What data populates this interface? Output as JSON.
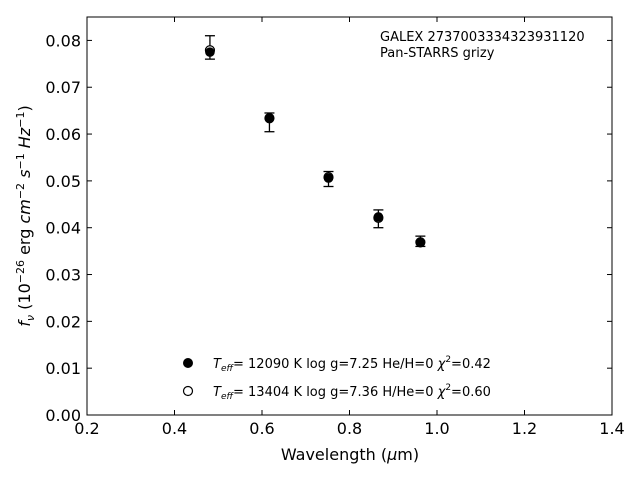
{
  "chart_data": {
    "type": "scatter",
    "title": "",
    "xlabel": "Wavelength (μm)",
    "ylabel": "f_ν (10^-26 erg cm^-2 s^-1 Hz^-1)",
    "xlim": [
      0.2,
      1.4
    ],
    "ylim": [
      0.0,
      0.085
    ],
    "x_ticks": [
      0.2,
      0.4,
      0.6,
      0.8,
      1.0,
      1.2,
      1.4
    ],
    "x_tick_labels": [
      "0.2",
      "0.4",
      "0.6",
      "0.8",
      "1.0",
      "1.2",
      "1.4"
    ],
    "y_ticks": [
      0.0,
      0.01,
      0.02,
      0.03,
      0.04,
      0.05,
      0.06,
      0.07,
      0.08
    ],
    "y_tick_labels": [
      "0.00",
      "0.01",
      "0.02",
      "0.03",
      "0.04",
      "0.05",
      "0.06",
      "0.07",
      "0.08"
    ],
    "grid": false,
    "annotation": [
      "GALEX 2737003334323931120",
      "Pan-STARRS grizy"
    ],
    "observed": {
      "x": [
        0.481,
        0.617,
        0.752,
        0.866,
        0.962
      ],
      "y": [
        0.0778,
        0.0635,
        0.0508,
        0.042,
        0.037
      ],
      "err_low": [
        0.0018,
        0.003,
        0.002,
        0.002,
        0.001
      ],
      "err_high": [
        0.0032,
        0.001,
        0.0012,
        0.0018,
        0.0012
      ]
    },
    "series": [
      {
        "name": "T_eff= 12090 K  log g=7.25  He/H=0  χ²=0.42",
        "marker": "filled",
        "x": [
          0.481,
          0.617,
          0.752,
          0.866,
          0.962
        ],
        "y": [
          0.0775,
          0.0633,
          0.0506,
          0.0423,
          0.0368
        ]
      },
      {
        "name": "T_eff= 13404 K  log g=7.36  H/He=0  χ²=0.60",
        "marker": "open",
        "x": [
          0.481,
          0.617,
          0.752,
          0.866,
          0.962
        ],
        "y": [
          0.0779,
          0.0634,
          0.0508,
          0.0421,
          0.0369
        ]
      }
    ],
    "legend": {
      "placement": "lower-center",
      "entries": [
        {
          "teff": "= 12090 K",
          "logg": "log g=7.25",
          "comp": "He/H=0",
          "chi": "=0.42"
        },
        {
          "teff": "= 13404 K",
          "logg": "log g=7.36",
          "comp": "H/He=0",
          "chi": "=0.60"
        }
      ]
    }
  }
}
